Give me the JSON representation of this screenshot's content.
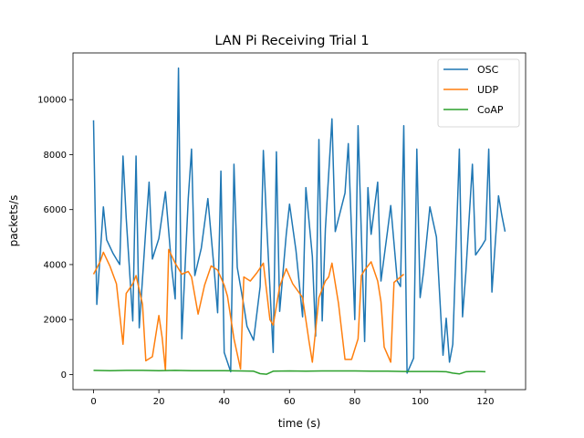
{
  "chart_data": {
    "type": "line",
    "title": "LAN Pi Receiving Trial 1",
    "xlabel": "time (s)",
    "ylabel": "packets/s",
    "xlim": [
      -6.3,
      132.3
    ],
    "ylim": [
      -550,
      11700
    ],
    "xticks": [
      0,
      20,
      40,
      60,
      80,
      100,
      120
    ],
    "yticks": [
      0,
      2000,
      4000,
      6000,
      8000,
      10000
    ],
    "grid": false,
    "legend_position": "top-right",
    "series": [
      {
        "name": "OSC",
        "color": "#1f77b4",
        "x": [
          0,
          1,
          3,
          4,
          6,
          8,
          9,
          10,
          12,
          13,
          14,
          16,
          17,
          18,
          20,
          22,
          24,
          25,
          26,
          27,
          29,
          30,
          31,
          33,
          35,
          37,
          38,
          39,
          40,
          42,
          43,
          44,
          46,
          47,
          49,
          51,
          52,
          53,
          55,
          56,
          57,
          59,
          60,
          62,
          64,
          65,
          67,
          68,
          69,
          70,
          71,
          73,
          74,
          77,
          78,
          80,
          81,
          83,
          84,
          85,
          87,
          88,
          90,
          91,
          93,
          94,
          95,
          96,
          98,
          99,
          100,
          101,
          103,
          105,
          107,
          108,
          109,
          110,
          112,
          113,
          114,
          116,
          117,
          119,
          120,
          121,
          122,
          124,
          125,
          126
        ],
        "y": [
          9250,
          2550,
          6100,
          4900,
          4400,
          4000,
          7950,
          5700,
          1950,
          7950,
          1700,
          5300,
          7000,
          4200,
          4950,
          6650,
          3800,
          2750,
          11150,
          1300,
          6400,
          8200,
          3600,
          4600,
          6400,
          3700,
          2250,
          7400,
          800,
          100,
          7650,
          3900,
          2500,
          1750,
          1250,
          3200,
          8150,
          5500,
          800,
          8100,
          2300,
          5100,
          6200,
          4500,
          2100,
          6800,
          4300,
          1400,
          8550,
          1950,
          5300,
          9300,
          5200,
          6600,
          8400,
          2000,
          9050,
          1200,
          6800,
          5100,
          7000,
          3400,
          5200,
          6150,
          3400,
          3200,
          9050,
          50,
          600,
          8200,
          2800,
          3700,
          6100,
          5000,
          700,
          2050,
          450,
          1100,
          8200,
          2100,
          3700,
          7650,
          4350,
          4700,
          4900,
          8200,
          3000,
          6500,
          5800,
          5200
        ]
      },
      {
        "name": "UDP",
        "color": "#ff7f0e",
        "x": [
          0,
          2,
          3,
          5,
          7,
          9,
          10,
          12,
          13,
          15,
          16,
          18,
          20,
          21,
          22,
          23,
          25,
          27,
          29,
          30,
          32,
          34,
          36,
          38,
          40,
          41,
          43,
          45,
          46,
          48,
          50,
          52,
          54,
          55,
          57,
          59,
          61,
          64,
          66,
          67,
          69,
          71,
          72,
          73,
          75,
          77,
          79,
          81,
          82,
          83,
          85,
          87,
          88,
          89,
          91,
          92,
          93,
          95
        ],
        "y": [
          3650,
          4100,
          4450,
          3950,
          3300,
          1100,
          2950,
          3300,
          3600,
          2550,
          500,
          650,
          2150,
          1350,
          150,
          4550,
          4050,
          3650,
          3750,
          3550,
          2200,
          3250,
          3950,
          3800,
          3250,
          2850,
          1300,
          200,
          3550,
          3400,
          3700,
          4050,
          2000,
          1800,
          3200,
          3850,
          3300,
          2800,
          1200,
          450,
          2800,
          3400,
          3550,
          4050,
          2600,
          550,
          550,
          1300,
          3600,
          3800,
          4100,
          3400,
          2650,
          1000,
          450,
          3350,
          3450,
          3650
        ]
      },
      {
        "name": "CoAP",
        "color": "#2ca02c",
        "x": [
          0,
          5,
          10,
          15,
          20,
          25,
          30,
          35,
          40,
          45,
          49,
          51,
          53,
          55,
          60,
          65,
          70,
          75,
          80,
          85,
          90,
          95,
          100,
          105,
          108,
          110,
          112,
          114,
          116,
          118,
          120
        ],
        "y": [
          150,
          140,
          150,
          150,
          140,
          150,
          140,
          140,
          140,
          130,
          120,
          30,
          10,
          120,
          130,
          120,
          130,
          130,
          130,
          120,
          120,
          110,
          110,
          110,
          100,
          50,
          20,
          100,
          110,
          110,
          100
        ]
      }
    ]
  }
}
